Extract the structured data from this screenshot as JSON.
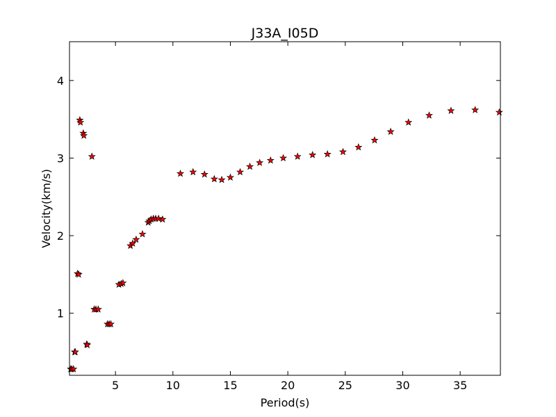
{
  "chart_data": {
    "type": "scatter",
    "title": "J33A_I05D",
    "xlabel": "Period(s)",
    "ylabel": "Velocity(km/s)",
    "xlim": [
      1,
      38.5
    ],
    "ylim": [
      0.2,
      4.5
    ],
    "xticks": [
      5,
      10,
      15,
      20,
      25,
      30,
      35
    ],
    "yticks": [
      1,
      2,
      3,
      4
    ],
    "marker": "star",
    "marker_color": "#ff0000",
    "marker_edge_color": "#000000",
    "grid": false,
    "points": [
      {
        "x": 1.1,
        "y": 0.28
      },
      {
        "x": 1.2,
        "y": 0.28
      },
      {
        "x": 1.35,
        "y": 0.28
      },
      {
        "x": 1.45,
        "y": 0.5
      },
      {
        "x": 1.5,
        "y": 0.5
      },
      {
        "x": 1.7,
        "y": 1.51
      },
      {
        "x": 1.8,
        "y": 1.5
      },
      {
        "x": 1.9,
        "y": 3.49
      },
      {
        "x": 1.95,
        "y": 3.46
      },
      {
        "x": 2.2,
        "y": 3.32
      },
      {
        "x": 2.25,
        "y": 3.29
      },
      {
        "x": 2.5,
        "y": 0.6
      },
      {
        "x": 2.55,
        "y": 0.59
      },
      {
        "x": 2.95,
        "y": 3.02
      },
      {
        "x": 3.15,
        "y": 1.05
      },
      {
        "x": 3.3,
        "y": 1.05
      },
      {
        "x": 3.5,
        "y": 1.05
      },
      {
        "x": 4.3,
        "y": 0.86
      },
      {
        "x": 4.45,
        "y": 0.86
      },
      {
        "x": 4.6,
        "y": 0.86
      },
      {
        "x": 5.3,
        "y": 1.37
      },
      {
        "x": 5.5,
        "y": 1.38
      },
      {
        "x": 5.65,
        "y": 1.39
      },
      {
        "x": 6.3,
        "y": 1.87
      },
      {
        "x": 6.5,
        "y": 1.9
      },
      {
        "x": 6.8,
        "y": 1.95
      },
      {
        "x": 7.35,
        "y": 2.02
      },
      {
        "x": 7.85,
        "y": 2.17
      },
      {
        "x": 7.95,
        "y": 2.19
      },
      {
        "x": 8.1,
        "y": 2.21
      },
      {
        "x": 8.3,
        "y": 2.22
      },
      {
        "x": 8.5,
        "y": 2.22
      },
      {
        "x": 8.75,
        "y": 2.22
      },
      {
        "x": 9.1,
        "y": 2.21
      },
      {
        "x": 10.65,
        "y": 2.8
      },
      {
        "x": 11.75,
        "y": 2.82
      },
      {
        "x": 12.75,
        "y": 2.79
      },
      {
        "x": 13.6,
        "y": 2.73
      },
      {
        "x": 14.25,
        "y": 2.72
      },
      {
        "x": 15.0,
        "y": 2.75
      },
      {
        "x": 15.85,
        "y": 2.82
      },
      {
        "x": 16.7,
        "y": 2.89
      },
      {
        "x": 17.55,
        "y": 2.94
      },
      {
        "x": 18.5,
        "y": 2.97
      },
      {
        "x": 19.6,
        "y": 3.0
      },
      {
        "x": 20.85,
        "y": 3.02
      },
      {
        "x": 22.15,
        "y": 3.04
      },
      {
        "x": 23.45,
        "y": 3.05
      },
      {
        "x": 24.8,
        "y": 3.08
      },
      {
        "x": 26.15,
        "y": 3.14
      },
      {
        "x": 27.55,
        "y": 3.23
      },
      {
        "x": 28.95,
        "y": 3.34
      },
      {
        "x": 30.5,
        "y": 3.46
      },
      {
        "x": 32.3,
        "y": 3.55
      },
      {
        "x": 34.2,
        "y": 3.61
      },
      {
        "x": 36.3,
        "y": 3.62
      },
      {
        "x": 38.4,
        "y": 3.59
      }
    ]
  }
}
